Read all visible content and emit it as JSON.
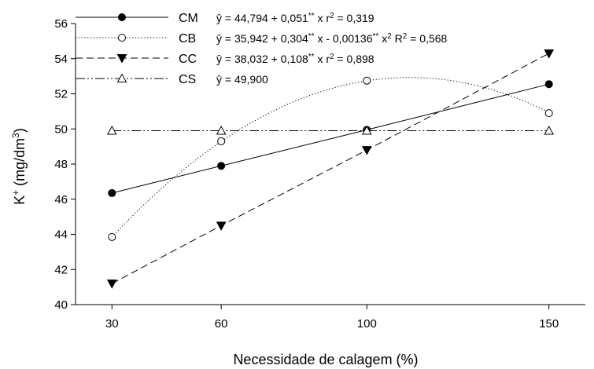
{
  "chart_data": {
    "type": "line",
    "title": "",
    "xlabel": "Necessidade de calagem (%)",
    "ylabel_base": "K",
    "ylabel_sup": "+",
    "ylabel_unit_open": " (mg/dm",
    "ylabel_unit_sup": "3",
    "ylabel_unit_close": ")",
    "x": [
      30,
      60,
      100,
      150
    ],
    "xlim": [
      20,
      160
    ],
    "ylim": [
      40,
      56
    ],
    "yticks": [
      40,
      42,
      44,
      46,
      48,
      50,
      52,
      54,
      56
    ],
    "grid": false,
    "legend_placement": "top-left",
    "series": [
      {
        "name": "CM",
        "values": [
          46.35,
          47.9,
          49.95,
          52.55
        ],
        "equation": "ŷ = 44,794 + 0,051** x  r2 = 0,319",
        "line_style": "solid",
        "marker": "filled-circle",
        "color": "#000000"
      },
      {
        "name": "CB",
        "values": [
          43.85,
          49.3,
          52.75,
          50.9
        ],
        "equation": "ŷ = 35,942 + 0,304** x - 0,00136** x2  R2 = 0,568",
        "line_style": "dotted",
        "marker": "open-circle",
        "color": "#000000"
      },
      {
        "name": "CC",
        "values": [
          41.2,
          44.5,
          48.8,
          54.3
        ],
        "equation": "ŷ = 38,032 + 0,108** x  r2 = 0,898",
        "line_style": "dashed",
        "marker": "filled-triangle-down",
        "color": "#000000"
      },
      {
        "name": "CS",
        "values": [
          49.9,
          49.9,
          49.9,
          49.9
        ],
        "equation": "ŷ = 49,900",
        "line_style": "dash-dot-dot",
        "marker": "open-triangle-up",
        "color": "#000000"
      }
    ]
  }
}
